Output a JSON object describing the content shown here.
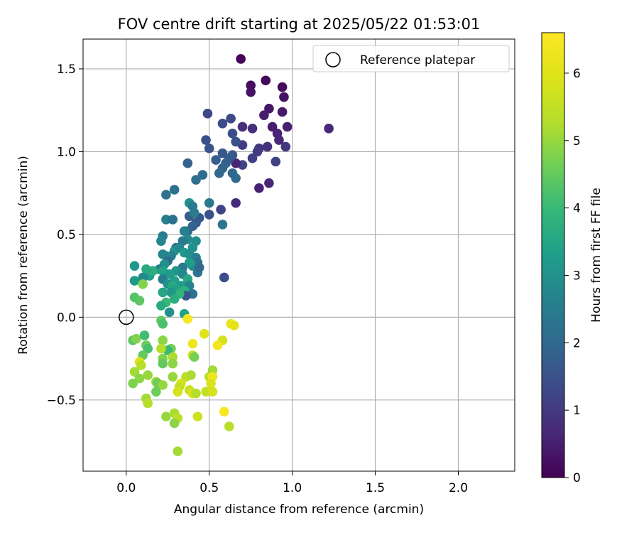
{
  "chart_data": {
    "type": "scatter",
    "title": "FOV centre drift starting at 2025/05/22 01:53:01",
    "xlabel": "Angular distance from reference (arcmin)",
    "ylabel": "Rotation from reference (arcmin)",
    "xlim": [
      -0.26,
      2.34
    ],
    "ylim": [
      -0.93,
      1.68
    ],
    "xticks": [
      0.0,
      0.5,
      1.0,
      1.5,
      2.0
    ],
    "xtick_labels": [
      "0.0",
      "0.5",
      "1.0",
      "1.5",
      "2.0"
    ],
    "yticks": [
      -0.5,
      0.0,
      0.5,
      1.0,
      1.5
    ],
    "ytick_labels": [
      "−0.5",
      "0.0",
      "0.5",
      "1.0",
      "1.5"
    ],
    "grid": true,
    "legend": {
      "placement": "upper right",
      "entries": [
        "Reference platepar"
      ]
    },
    "colorbar": {
      "label": "Hours from first FF file",
      "range": [
        0,
        6.6
      ],
      "ticks": [
        0,
        1,
        2,
        3,
        4,
        5,
        6
      ],
      "tick_labels": [
        "0",
        "1",
        "2",
        "3",
        "4",
        "5",
        "6"
      ],
      "colormap": "viridis"
    },
    "reference_point": {
      "x": 0.0,
      "y": 0.0,
      "marker": "open circle"
    },
    "colors": {
      "grid": "#b0b0b0",
      "reference": "#000000"
    },
    "points": [
      {
        "x": 0.69,
        "y": 1.56,
        "t": 0.05
      },
      {
        "x": 0.84,
        "y": 1.43,
        "t": 0.1
      },
      {
        "x": 0.94,
        "y": 1.39,
        "t": 0.15
      },
      {
        "x": 0.75,
        "y": 1.4,
        "t": 0.2
      },
      {
        "x": 0.95,
        "y": 1.33,
        "t": 0.25
      },
      {
        "x": 0.75,
        "y": 1.36,
        "t": 0.3
      },
      {
        "x": 0.86,
        "y": 1.26,
        "t": 0.35
      },
      {
        "x": 0.94,
        "y": 1.24,
        "t": 0.4
      },
      {
        "x": 0.83,
        "y": 1.22,
        "t": 0.45
      },
      {
        "x": 0.88,
        "y": 1.15,
        "t": 0.5
      },
      {
        "x": 0.97,
        "y": 1.15,
        "t": 0.55
      },
      {
        "x": 0.91,
        "y": 1.11,
        "t": 0.6
      },
      {
        "x": 0.92,
        "y": 1.07,
        "t": 0.65
      },
      {
        "x": 1.22,
        "y": 1.14,
        "t": 0.7
      },
      {
        "x": 0.7,
        "y": 1.15,
        "t": 0.75
      },
      {
        "x": 0.76,
        "y": 1.14,
        "t": 0.8
      },
      {
        "x": 0.85,
        "y": 1.03,
        "t": 0.85
      },
      {
        "x": 0.8,
        "y": 1.02,
        "t": 0.9
      },
      {
        "x": 0.96,
        "y": 1.03,
        "t": 0.95
      },
      {
        "x": 0.79,
        "y": 1.0,
        "t": 1.0
      },
      {
        "x": 0.7,
        "y": 1.04,
        "t": 1.05
      },
      {
        "x": 0.76,
        "y": 0.96,
        "t": 1.1
      },
      {
        "x": 0.9,
        "y": 0.94,
        "t": 1.15
      },
      {
        "x": 0.7,
        "y": 0.92,
        "t": 1.2
      },
      {
        "x": 0.66,
        "y": 0.93,
        "t": 0.6
      },
      {
        "x": 0.86,
        "y": 0.81,
        "t": 0.65
      },
      {
        "x": 0.8,
        "y": 0.78,
        "t": 0.55
      },
      {
        "x": 0.66,
        "y": 0.69,
        "t": 0.7
      },
      {
        "x": 0.49,
        "y": 1.23,
        "t": 1.25
      },
      {
        "x": 0.63,
        "y": 1.2,
        "t": 1.3
      },
      {
        "x": 0.58,
        "y": 1.17,
        "t": 1.35
      },
      {
        "x": 0.64,
        "y": 1.11,
        "t": 1.4
      },
      {
        "x": 0.48,
        "y": 1.07,
        "t": 1.45
      },
      {
        "x": 0.66,
        "y": 1.06,
        "t": 1.5
      },
      {
        "x": 0.5,
        "y": 1.02,
        "t": 1.55
      },
      {
        "x": 0.58,
        "y": 0.99,
        "t": 1.6
      },
      {
        "x": 0.64,
        "y": 0.98,
        "t": 1.65
      },
      {
        "x": 0.62,
        "y": 0.96,
        "t": 1.7
      },
      {
        "x": 0.54,
        "y": 0.95,
        "t": 1.75
      },
      {
        "x": 0.6,
        "y": 0.93,
        "t": 1.8
      },
      {
        "x": 0.37,
        "y": 0.93,
        "t": 1.85
      },
      {
        "x": 0.58,
        "y": 0.9,
        "t": 1.9
      },
      {
        "x": 0.56,
        "y": 0.87,
        "t": 1.95
      },
      {
        "x": 0.64,
        "y": 0.87,
        "t": 2.0
      },
      {
        "x": 0.66,
        "y": 0.84,
        "t": 2.05
      },
      {
        "x": 0.46,
        "y": 0.86,
        "t": 2.1
      },
      {
        "x": 0.42,
        "y": 0.83,
        "t": 2.15
      },
      {
        "x": 0.29,
        "y": 0.77,
        "t": 2.2
      },
      {
        "x": 0.24,
        "y": 0.74,
        "t": 2.25
      },
      {
        "x": 0.57,
        "y": 0.65,
        "t": 1.2
      },
      {
        "x": 0.58,
        "y": 0.56,
        "t": 2.3
      },
      {
        "x": 0.59,
        "y": 0.24,
        "t": 1.4
      },
      {
        "x": 0.5,
        "y": 0.69,
        "t": 2.35
      },
      {
        "x": 0.5,
        "y": 0.62,
        "t": 1.5
      },
      {
        "x": 0.44,
        "y": 0.6,
        "t": 1.6
      },
      {
        "x": 0.42,
        "y": 0.57,
        "t": 1.7
      },
      {
        "x": 0.38,
        "y": 0.61,
        "t": 1.75
      },
      {
        "x": 0.4,
        "y": 0.55,
        "t": 1.9
      },
      {
        "x": 0.37,
        "y": 0.52,
        "t": 2.0
      },
      {
        "x": 0.38,
        "y": 0.69,
        "t": 3.0
      },
      {
        "x": 0.4,
        "y": 0.67,
        "t": 2.4
      },
      {
        "x": 0.41,
        "y": 0.63,
        "t": 2.5
      },
      {
        "x": 0.24,
        "y": 0.59,
        "t": 2.6
      },
      {
        "x": 0.28,
        "y": 0.59,
        "t": 2.2
      },
      {
        "x": 0.22,
        "y": 0.49,
        "t": 2.5
      },
      {
        "x": 0.21,
        "y": 0.46,
        "t": 2.7
      },
      {
        "x": 0.35,
        "y": 0.52,
        "t": 2.6
      },
      {
        "x": 0.37,
        "y": 0.47,
        "t": 2.8
      },
      {
        "x": 0.42,
        "y": 0.46,
        "t": 2.9
      },
      {
        "x": 0.4,
        "y": 0.42,
        "t": 3.0
      },
      {
        "x": 0.34,
        "y": 0.46,
        "t": 2.4
      },
      {
        "x": 0.3,
        "y": 0.42,
        "t": 2.3
      },
      {
        "x": 0.29,
        "y": 0.4,
        "t": 3.1
      },
      {
        "x": 0.32,
        "y": 0.42,
        "t": 2.8
      },
      {
        "x": 0.35,
        "y": 0.39,
        "t": 3.2
      },
      {
        "x": 0.38,
        "y": 0.38,
        "t": 3.0
      },
      {
        "x": 0.42,
        "y": 0.36,
        "t": 2.6
      },
      {
        "x": 0.43,
        "y": 0.33,
        "t": 2.2
      },
      {
        "x": 0.4,
        "y": 0.31,
        "t": 2.9
      },
      {
        "x": 0.38,
        "y": 0.33,
        "t": 3.3
      },
      {
        "x": 0.34,
        "y": 0.3,
        "t": 2.4
      },
      {
        "x": 0.3,
        "y": 0.28,
        "t": 3.1
      },
      {
        "x": 0.27,
        "y": 0.37,
        "t": 2.5
      },
      {
        "x": 0.24,
        "y": 0.37,
        "t": 2.9
      },
      {
        "x": 0.22,
        "y": 0.38,
        "t": 2.7
      },
      {
        "x": 0.25,
        "y": 0.34,
        "t": 2.1
      },
      {
        "x": 0.23,
        "y": 0.32,
        "t": 3.0
      },
      {
        "x": 0.2,
        "y": 0.29,
        "t": 2.6
      },
      {
        "x": 0.22,
        "y": 0.28,
        "t": 3.4
      },
      {
        "x": 0.26,
        "y": 0.26,
        "t": 3.2
      },
      {
        "x": 0.43,
        "y": 0.27,
        "t": 2.3
      },
      {
        "x": 0.44,
        "y": 0.3,
        "t": 2.0
      },
      {
        "x": 0.34,
        "y": 0.26,
        "t": 2.8
      },
      {
        "x": 0.37,
        "y": 0.23,
        "t": 3.5
      },
      {
        "x": 0.29,
        "y": 0.22,
        "t": 3.3
      },
      {
        "x": 0.22,
        "y": 0.23,
        "t": 2.5
      },
      {
        "x": 0.25,
        "y": 0.2,
        "t": 3.0
      },
      {
        "x": 0.28,
        "y": 0.19,
        "t": 3.6
      },
      {
        "x": 0.33,
        "y": 0.19,
        "t": 3.2
      },
      {
        "x": 0.3,
        "y": 0.17,
        "t": 3.4
      },
      {
        "x": 0.38,
        "y": 0.19,
        "t": 2.7
      },
      {
        "x": 0.35,
        "y": 0.16,
        "t": 3.8
      },
      {
        "x": 0.4,
        "y": 0.14,
        "t": 2.2
      },
      {
        "x": 0.36,
        "y": 0.13,
        "t": 1.6
      },
      {
        "x": 0.32,
        "y": 0.14,
        "t": 3.9
      },
      {
        "x": 0.27,
        "y": 0.15,
        "t": 3.1
      },
      {
        "x": 0.22,
        "y": 0.15,
        "t": 3.5
      },
      {
        "x": 0.29,
        "y": 0.11,
        "t": 3.7
      },
      {
        "x": 0.24,
        "y": 0.09,
        "t": 4.0
      },
      {
        "x": 0.21,
        "y": 0.07,
        "t": 3.6
      },
      {
        "x": 0.14,
        "y": 0.25,
        "t": 3.3
      },
      {
        "x": 0.16,
        "y": 0.28,
        "t": 3.7
      },
      {
        "x": 0.12,
        "y": 0.29,
        "t": 3.6
      },
      {
        "x": 0.1,
        "y": 0.24,
        "t": 2.8
      },
      {
        "x": 0.05,
        "y": 0.31,
        "t": 3.1
      },
      {
        "x": 0.05,
        "y": 0.22,
        "t": 3.2
      },
      {
        "x": 0.1,
        "y": 0.2,
        "t": 4.8
      },
      {
        "x": 0.05,
        "y": 0.12,
        "t": 4.3
      },
      {
        "x": 0.08,
        "y": 0.1,
        "t": 4.4
      },
      {
        "x": 0.26,
        "y": 0.03,
        "t": 3.0
      },
      {
        "x": 0.35,
        "y": 0.02,
        "t": 3.4
      },
      {
        "x": 0.21,
        "y": -0.02,
        "t": 4.5
      },
      {
        "x": 0.22,
        "y": -0.04,
        "t": 4.2
      },
      {
        "x": 0.37,
        "y": -0.01,
        "t": 6.5
      },
      {
        "x": 0.63,
        "y": -0.04,
        "t": 6.2
      },
      {
        "x": 0.65,
        "y": -0.05,
        "t": 6.1
      },
      {
        "x": 0.47,
        "y": -0.1,
        "t": 6.0
      },
      {
        "x": 0.58,
        "y": -0.14,
        "t": 5.8
      },
      {
        "x": 0.55,
        "y": -0.17,
        "t": 6.4
      },
      {
        "x": 0.4,
        "y": -0.16,
        "t": 6.3
      },
      {
        "x": 0.4,
        "y": -0.23,
        "t": 5.7
      },
      {
        "x": 0.04,
        "y": -0.14,
        "t": 4.4
      },
      {
        "x": 0.06,
        "y": -0.13,
        "t": 4.8
      },
      {
        "x": 0.11,
        "y": -0.11,
        "t": 4.1
      },
      {
        "x": 0.12,
        "y": -0.17,
        "t": 4.6
      },
      {
        "x": 0.13,
        "y": -0.19,
        "t": 4.2
      },
      {
        "x": 0.22,
        "y": -0.14,
        "t": 4.9
      },
      {
        "x": 0.27,
        "y": -0.19,
        "t": 4.7
      },
      {
        "x": 0.25,
        "y": -0.2,
        "t": 4.0
      },
      {
        "x": 0.21,
        "y": -0.19,
        "t": 5.3
      },
      {
        "x": 0.28,
        "y": -0.24,
        "t": 5.2
      },
      {
        "x": 0.41,
        "y": -0.24,
        "t": 4.7
      },
      {
        "x": 0.1,
        "y": -0.23,
        "t": 4.5
      },
      {
        "x": 0.22,
        "y": -0.25,
        "t": 4.8
      },
      {
        "x": 0.08,
        "y": -0.27,
        "t": 6.0
      },
      {
        "x": 0.09,
        "y": -0.29,
        "t": 5.3
      },
      {
        "x": 0.22,
        "y": -0.28,
        "t": 4.5
      },
      {
        "x": 0.28,
        "y": -0.28,
        "t": 4.9
      },
      {
        "x": 0.05,
        "y": -0.33,
        "t": 5.1
      },
      {
        "x": 0.13,
        "y": -0.35,
        "t": 5.0
      },
      {
        "x": 0.08,
        "y": -0.37,
        "t": 4.9
      },
      {
        "x": 0.04,
        "y": -0.4,
        "t": 4.8
      },
      {
        "x": 0.18,
        "y": -0.39,
        "t": 5.0
      },
      {
        "x": 0.19,
        "y": -0.4,
        "t": 4.6
      },
      {
        "x": 0.22,
        "y": -0.41,
        "t": 5.0
      },
      {
        "x": 0.28,
        "y": -0.36,
        "t": 5.0
      },
      {
        "x": 0.33,
        "y": -0.4,
        "t": 5.9
      },
      {
        "x": 0.32,
        "y": -0.42,
        "t": 5.5
      },
      {
        "x": 0.36,
        "y": -0.36,
        "t": 5.4
      },
      {
        "x": 0.39,
        "y": -0.35,
        "t": 5.2
      },
      {
        "x": 0.31,
        "y": -0.45,
        "t": 5.8
      },
      {
        "x": 0.38,
        "y": -0.44,
        "t": 5.6
      },
      {
        "x": 0.4,
        "y": -0.46,
        "t": 5.9
      },
      {
        "x": 0.42,
        "y": -0.46,
        "t": 5.3
      },
      {
        "x": 0.48,
        "y": -0.45,
        "t": 5.5
      },
      {
        "x": 0.5,
        "y": -0.36,
        "t": 5.4
      },
      {
        "x": 0.52,
        "y": -0.32,
        "t": 5.1
      },
      {
        "x": 0.52,
        "y": -0.36,
        "t": 6.3
      },
      {
        "x": 0.51,
        "y": -0.4,
        "t": 5.9
      },
      {
        "x": 0.52,
        "y": -0.45,
        "t": 5.8
      },
      {
        "x": 0.18,
        "y": -0.45,
        "t": 4.6
      },
      {
        "x": 0.12,
        "y": -0.49,
        "t": 5.1
      },
      {
        "x": 0.13,
        "y": -0.52,
        "t": 5.3
      },
      {
        "x": 0.24,
        "y": -0.6,
        "t": 5.0
      },
      {
        "x": 0.29,
        "y": -0.58,
        "t": 5.2
      },
      {
        "x": 0.31,
        "y": -0.61,
        "t": 5.4
      },
      {
        "x": 0.43,
        "y": -0.6,
        "t": 5.7
      },
      {
        "x": 0.29,
        "y": -0.64,
        "t": 4.9
      },
      {
        "x": 0.59,
        "y": -0.57,
        "t": 6.5
      },
      {
        "x": 0.62,
        "y": -0.66,
        "t": 5.3
      },
      {
        "x": 0.31,
        "y": -0.81,
        "t": 5.1
      }
    ]
  }
}
